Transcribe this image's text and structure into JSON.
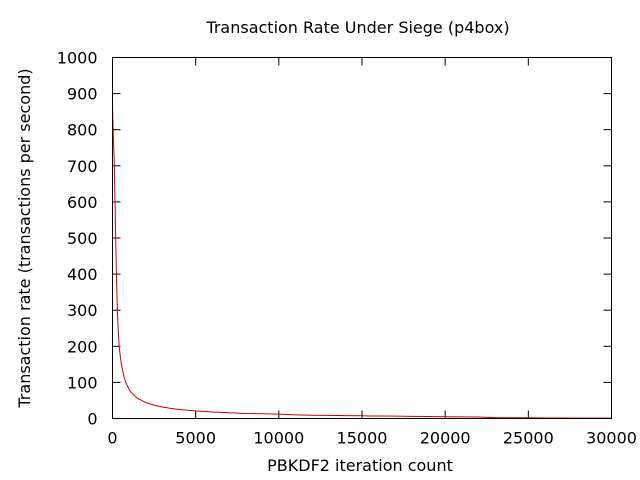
{
  "chart_data": {
    "type": "line",
    "title": "Transaction Rate Under Siege (p4box)",
    "xlabel": "PBKDF2 iteration count",
    "ylabel": "Transaction rate (transactions per second)",
    "xlim": [
      0,
      30000
    ],
    "ylim": [
      0,
      1000
    ],
    "xticks": [
      0,
      5000,
      10000,
      15000,
      20000,
      25000,
      30000
    ],
    "yticks": [
      0,
      100,
      200,
      300,
      400,
      500,
      600,
      700,
      800,
      900,
      1000
    ],
    "grid": false,
    "legend": "none",
    "series": [
      {
        "color": "#cc0000",
        "x": [
          1,
          50,
          100,
          150,
          200,
          250,
          300,
          350,
          400,
          500,
          600,
          700,
          800,
          1000,
          1200,
          1500,
          1800,
          2000,
          2500,
          3000,
          3500,
          4000,
          5000,
          6000,
          7000,
          8000,
          9000,
          10000,
          10500,
          11000,
          12000,
          13000,
          14000,
          15000,
          15500,
          16000,
          17000,
          18000,
          19000,
          20000,
          21000,
          22000,
          22500,
          23000,
          24000,
          25000,
          26000,
          27000,
          28000,
          29000,
          30000
        ],
        "y": [
          865,
          780,
          720,
          600,
          480,
          370,
          290,
          240,
          200,
          160,
          135,
          115,
          100,
          80,
          68,
          56,
          49,
          44,
          37,
          32,
          28,
          25,
          21,
          18,
          16,
          14,
          13,
          12,
          11,
          10,
          9,
          8.5,
          8,
          7.5,
          7,
          7,
          6.5,
          6,
          5.5,
          5,
          4.5,
          4,
          3,
          2.5,
          2,
          2,
          1.5,
          1.5,
          1,
          1,
          1
        ]
      }
    ]
  }
}
